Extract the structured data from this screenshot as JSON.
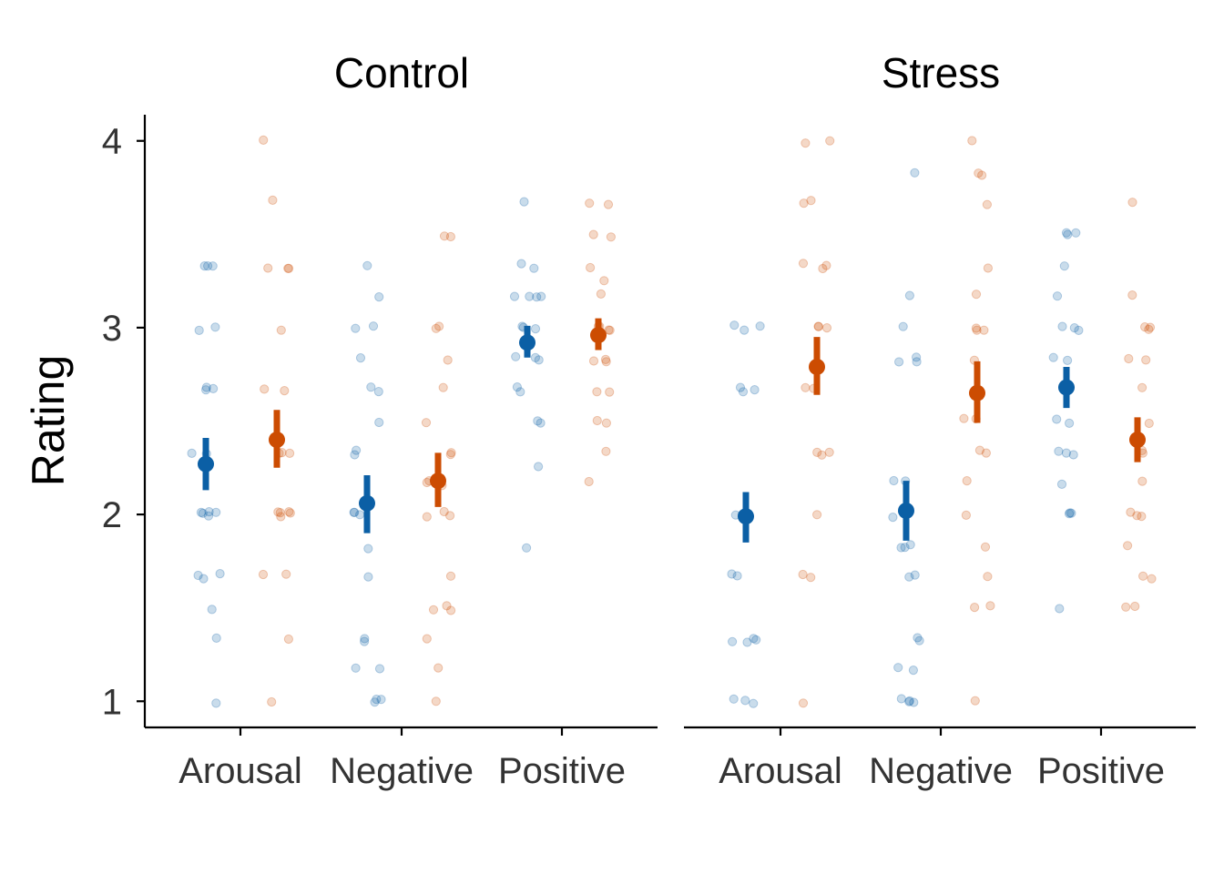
{
  "chart_data": {
    "type": "scatter",
    "ylabel": "Rating",
    "xlabel": "",
    "ylim": [
      0.86,
      4.14
    ],
    "yticks": [
      1,
      2,
      3,
      4
    ],
    "categories": [
      "Arousal",
      "Negative",
      "Positive"
    ],
    "grid": false,
    "legend": "none",
    "colors": {
      "group_a": "#0B5FA5",
      "group_b": "#CC4C02"
    },
    "panels": [
      {
        "title": "Control",
        "summary": [
          {
            "category": "Arousal",
            "group": "group_a",
            "mean": 2.27,
            "low": 2.13,
            "high": 2.41
          },
          {
            "category": "Arousal",
            "group": "group_b",
            "mean": 2.4,
            "low": 2.25,
            "high": 2.56
          },
          {
            "category": "Negative",
            "group": "group_a",
            "mean": 2.06,
            "low": 1.9,
            "high": 2.21
          },
          {
            "category": "Negative",
            "group": "group_b",
            "mean": 2.18,
            "low": 2.04,
            "high": 2.33
          },
          {
            "category": "Positive",
            "group": "group_a",
            "mean": 2.92,
            "low": 2.84,
            "high": 3.01
          },
          {
            "category": "Positive",
            "group": "group_b",
            "mean": 2.96,
            "low": 2.88,
            "high": 3.05
          }
        ],
        "raw": [
          {
            "category": "Arousal",
            "group": "group_a",
            "values": [
              3.33,
              3.33,
              3.33,
              3.0,
              3.0,
              2.67,
              2.67,
              2.67,
              2.33,
              2.33,
              2.0,
              2.0,
              2.0,
              2.0,
              2.0,
              1.67,
              1.67,
              1.67,
              1.5,
              1.33,
              1.0
            ]
          },
          {
            "category": "Arousal",
            "group": "group_b",
            "values": [
              4.0,
              3.67,
              3.33,
              3.33,
              3.33,
              3.0,
              2.67,
              2.67,
              2.33,
              2.33,
              2.33,
              2.0,
              2.0,
              2.0,
              2.0,
              2.0,
              1.67,
              1.67,
              1.33,
              1.0
            ]
          },
          {
            "category": "Negative",
            "group": "group_a",
            "values": [
              3.33,
              3.17,
              3.0,
              3.0,
              2.83,
              2.67,
              2.67,
              2.5,
              2.33,
              2.33,
              2.0,
              2.0,
              2.0,
              1.83,
              1.67,
              1.33,
              1.33,
              1.17,
              1.17,
              1.0,
              1.0,
              1.0
            ]
          },
          {
            "category": "Negative",
            "group": "group_b",
            "values": [
              3.5,
              3.5,
              3.0,
              3.0,
              2.83,
              2.67,
              2.5,
              2.33,
              2.33,
              2.17,
              2.17,
              2.17,
              2.0,
              2.0,
              2.0,
              1.67,
              1.5,
              1.5,
              1.5,
              1.33,
              1.17,
              1.0
            ]
          },
          {
            "category": "Positive",
            "group": "group_a",
            "values": [
              3.67,
              3.33,
              3.33,
              3.17,
              3.17,
              3.17,
              3.17,
              3.0,
              3.0,
              3.0,
              2.83,
              2.83,
              2.83,
              2.67,
              2.67,
              2.5,
              2.5,
              2.25,
              1.83
            ]
          },
          {
            "category": "Positive",
            "group": "group_b",
            "values": [
              3.67,
              3.67,
              3.5,
              3.5,
              3.33,
              3.25,
              3.17,
              3.0,
              3.0,
              3.0,
              3.0,
              2.83,
              2.83,
              2.83,
              2.67,
              2.67,
              2.5,
              2.5,
              2.33,
              2.17
            ]
          }
        ]
      },
      {
        "title": "Stress",
        "summary": [
          {
            "category": "Arousal",
            "group": "group_a",
            "mean": 1.99,
            "low": 1.85,
            "high": 2.12
          },
          {
            "category": "Arousal",
            "group": "group_b",
            "mean": 2.79,
            "low": 2.64,
            "high": 2.95
          },
          {
            "category": "Negative",
            "group": "group_a",
            "mean": 2.02,
            "low": 1.86,
            "high": 2.18
          },
          {
            "category": "Negative",
            "group": "group_b",
            "mean": 2.65,
            "low": 2.49,
            "high": 2.82
          },
          {
            "category": "Positive",
            "group": "group_a",
            "mean": 2.68,
            "low": 2.57,
            "high": 2.79
          },
          {
            "category": "Positive",
            "group": "group_b",
            "mean": 2.4,
            "low": 2.28,
            "high": 2.52
          }
        ],
        "raw": [
          {
            "category": "Arousal",
            "group": "group_a",
            "values": [
              3.0,
              3.0,
              3.0,
              2.67,
              2.67,
              2.67,
              2.0,
              2.0,
              2.0,
              1.67,
              1.67,
              1.33,
              1.33,
              1.33,
              1.33,
              1.0,
              1.0,
              1.0
            ]
          },
          {
            "category": "Arousal",
            "group": "group_b",
            "values": [
              4.0,
              4.0,
              3.67,
              3.67,
              3.33,
              3.33,
              3.33,
              3.0,
              3.0,
              3.0,
              2.67,
              2.67,
              2.33,
              2.33,
              2.33,
              2.0,
              1.67,
              1.67,
              1.0
            ]
          },
          {
            "category": "Negative",
            "group": "group_a",
            "values": [
              3.83,
              3.17,
              3.0,
              2.83,
              2.83,
              2.83,
              2.17,
              2.17,
              2.0,
              1.83,
              1.83,
              1.83,
              1.67,
              1.67,
              1.33,
              1.33,
              1.17,
              1.17,
              1.0,
              1.0,
              1.0,
              1.0
            ]
          },
          {
            "category": "Negative",
            "group": "group_b",
            "values": [
              4.0,
              3.83,
              3.83,
              3.67,
              3.33,
              3.17,
              3.0,
              3.0,
              3.0,
              2.83,
              2.5,
              2.5,
              2.33,
              2.33,
              2.17,
              2.0,
              1.83,
              1.67,
              1.5,
              1.5,
              1.0
            ]
          },
          {
            "category": "Positive",
            "group": "group_a",
            "values": [
              3.5,
              3.5,
              3.5,
              3.33,
              3.17,
              3.0,
              3.0,
              3.0,
              2.83,
              2.83,
              2.5,
              2.5,
              2.33,
              2.33,
              2.33,
              2.17,
              2.0,
              2.0,
              2.0,
              1.5
            ]
          },
          {
            "category": "Positive",
            "group": "group_b",
            "values": [
              3.67,
              3.17,
              3.0,
              3.0,
              3.0,
              2.83,
              2.83,
              2.67,
              2.5,
              2.33,
              2.33,
              2.17,
              2.0,
              2.0,
              2.0,
              1.83,
              1.67,
              1.67,
              1.5,
              1.5
            ]
          }
        ]
      }
    ]
  }
}
